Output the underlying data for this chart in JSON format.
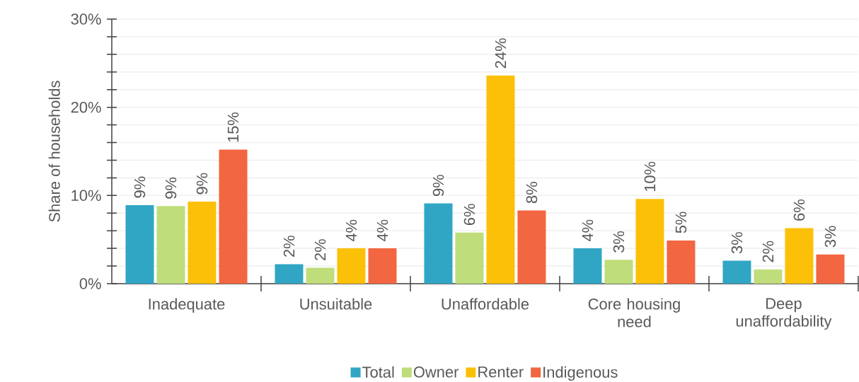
{
  "chart_data": {
    "type": "bar",
    "ylabel": "Share of households",
    "categories": [
      "Inadequate",
      "Unsuitable",
      "Unaffordable",
      "Core housing need",
      "Deep unaffordability"
    ],
    "series": [
      {
        "name": "Total",
        "color": "#31a6c4",
        "values": [
          8.9,
          2.2,
          9.1,
          4.0,
          2.6
        ],
        "value_labels": [
          "9%",
          "2%",
          "9%",
          "4%",
          "3%"
        ]
      },
      {
        "name": "Owner",
        "color": "#bfdd7b",
        "values": [
          8.8,
          1.8,
          5.8,
          2.7,
          1.6
        ],
        "value_labels": [
          "9%",
          "2%",
          "6%",
          "3%",
          "2%"
        ]
      },
      {
        "name": "Renter",
        "color": "#fcc008",
        "values": [
          9.3,
          4.0,
          23.6,
          9.6,
          6.3
        ],
        "value_labels": [
          "9%",
          "4%",
          "24%",
          "10%",
          "6%"
        ]
      },
      {
        "name": "Indigenous",
        "color": "#f26641",
        "values": [
          15.2,
          4.0,
          8.3,
          4.9,
          3.3
        ],
        "value_labels": [
          "15%",
          "4%",
          "8%",
          "5%",
          "3%"
        ]
      }
    ],
    "ylim": [
      0,
      30
    ],
    "yticks": [
      {
        "value": 0,
        "label": "0%"
      },
      {
        "value": 2,
        "label": null
      },
      {
        "value": 4,
        "label": null
      },
      {
        "value": 6,
        "label": null
      },
      {
        "value": 8,
        "label": null
      },
      {
        "value": 10,
        "label": "10%"
      },
      {
        "value": 12,
        "label": null
      },
      {
        "value": 14,
        "label": null
      },
      {
        "value": 16,
        "label": null
      },
      {
        "value": 18,
        "label": null
      },
      {
        "value": 20,
        "label": "20%"
      },
      {
        "value": 22,
        "label": null
      },
      {
        "value": 24,
        "label": null
      },
      {
        "value": 26,
        "label": null
      },
      {
        "value": 28,
        "label": null
      },
      {
        "value": 30,
        "label": "30%"
      }
    ],
    "grid": "y",
    "legend": "bottom"
  }
}
